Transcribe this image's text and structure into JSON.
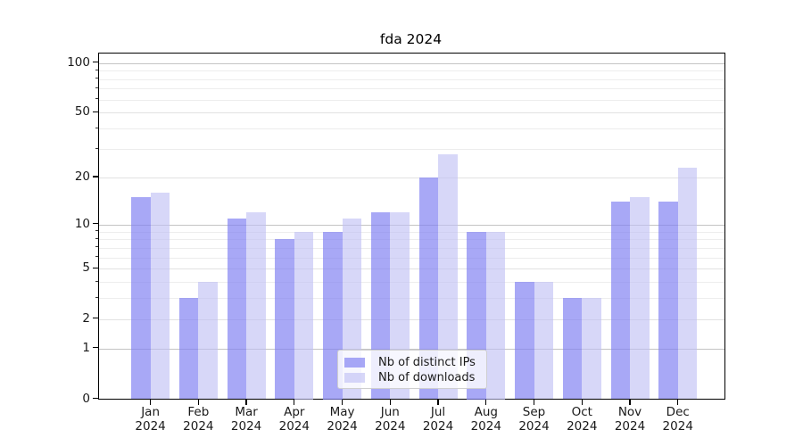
{
  "title": "fda 2024",
  "chart_data": {
    "type": "bar",
    "title": "fda 2024",
    "categories": [
      "Jan 2024",
      "Feb 2024",
      "Mar 2024",
      "Apr 2024",
      "May 2024",
      "Jun 2024",
      "Jul 2024",
      "Aug 2024",
      "Sep 2024",
      "Oct 2024",
      "Nov 2024",
      "Dec 2024"
    ],
    "series": [
      {
        "name": "Nb of distinct IPs",
        "color": "rgba(127,127,242,0.68)",
        "values": [
          15,
          3,
          11,
          8,
          9,
          12,
          20,
          9,
          4,
          3,
          14,
          14
        ]
      },
      {
        "name": "Nb of downloads",
        "color": "rgba(191,191,243,0.62)",
        "values": [
          16,
          4,
          12,
          9,
          11,
          12,
          28,
          9,
          4,
          3,
          15,
          23
        ]
      }
    ],
    "xlabel": "",
    "ylabel": "",
    "yscale": "log10(value+1)",
    "ylim": [
      0,
      114
    ],
    "y_ticks": [
      0,
      1,
      2,
      5,
      10,
      20,
      50,
      100
    ],
    "y_major_gridlines": [
      1,
      10,
      100
    ],
    "y_sub_gridlines": [
      2,
      5,
      20,
      50
    ],
    "y_minor_gridlines": [
      3,
      4,
      6,
      7,
      8,
      9,
      30,
      40,
      60,
      70,
      80,
      90
    ],
    "grid": "on",
    "legend_position": "lower center"
  },
  "colors": {
    "bar_distinct_ips": "rgba(127,127,242,0.68)",
    "bar_downloads": "rgba(191,191,243,0.62)",
    "grid_major": "#c4c4c4",
    "grid_minor": "#ededed",
    "axis": "#000000",
    "background": "#ffffff"
  }
}
